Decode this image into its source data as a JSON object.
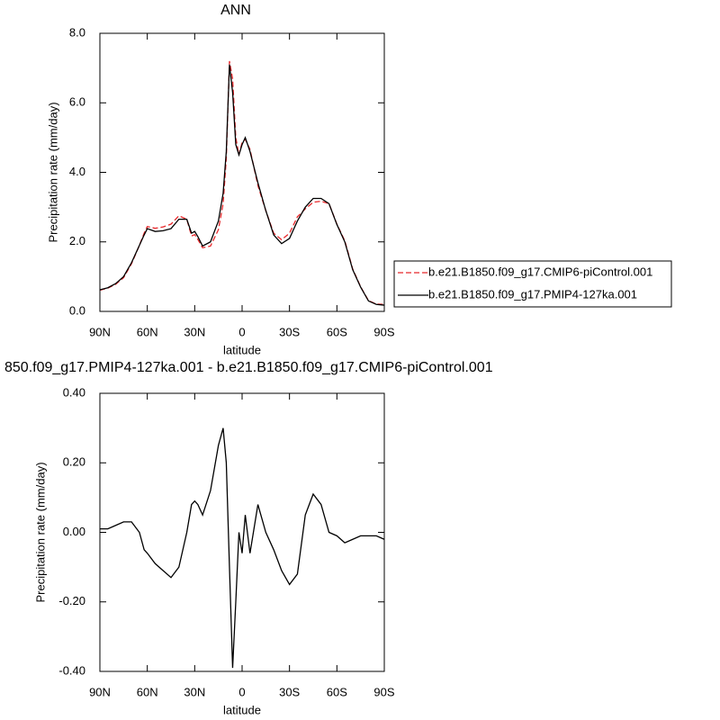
{
  "chart_data": [
    {
      "type": "line",
      "title": "ANN",
      "x_label": "latitude",
      "y_label": "Precipitation rate (mm/day)",
      "x": [
        90,
        85,
        80,
        75,
        70,
        65,
        62,
        60,
        55,
        50,
        45,
        40,
        35,
        32,
        30,
        28,
        25,
        20,
        15,
        12,
        10,
        8,
        6,
        4,
        2,
        0,
        -2,
        -5,
        -10,
        -15,
        -20,
        -25,
        -30,
        -35,
        -40,
        -45,
        -50,
        -55,
        -60,
        -65,
        -70,
        -75,
        -80,
        -85,
        -90
      ],
      "series": [
        {
          "name": "b.e21.B1850.f09_g17.CMIP6-piControl.001",
          "color": "#e8282b",
          "line_style": "dashed",
          "values": [
            0.61,
            0.67,
            0.78,
            0.97,
            1.37,
            1.9,
            2.25,
            2.44,
            2.39,
            2.43,
            2.51,
            2.75,
            2.65,
            2.17,
            2.21,
            2.07,
            1.83,
            1.88,
            2.35,
            3.1,
            4.4,
            7.2,
            6.69,
            5.0,
            4.5,
            4.86,
            4.95,
            4.66,
            3.62,
            2.9,
            2.25,
            2.06,
            2.25,
            2.72,
            2.95,
            3.14,
            3.17,
            3.1,
            2.51,
            2.03,
            1.22,
            0.71,
            0.31,
            0.21,
            0.2
          ]
        },
        {
          "name": "b.e21.B1850.f09_g17.PMIP4-127ka.001",
          "color": "#000000",
          "line_style": "solid",
          "values": [
            0.62,
            0.68,
            0.8,
            1.0,
            1.4,
            1.9,
            2.2,
            2.38,
            2.3,
            2.32,
            2.38,
            2.65,
            2.65,
            2.25,
            2.3,
            2.15,
            1.88,
            2.0,
            2.6,
            3.4,
            4.6,
            7.1,
            6.3,
            4.8,
            4.5,
            4.8,
            5.0,
            4.6,
            3.7,
            2.9,
            2.2,
            1.95,
            2.1,
            2.6,
            3.0,
            3.25,
            3.25,
            3.1,
            2.5,
            2.0,
            1.2,
            0.7,
            0.3,
            0.2,
            0.18
          ]
        }
      ],
      "xlim": [
        90,
        -90
      ],
      "xticks": [
        {
          "value": 90,
          "label": "90N"
        },
        {
          "value": 60,
          "label": "60N"
        },
        {
          "value": 30,
          "label": "30N"
        },
        0,
        {
          "value": -30,
          "label": "30S"
        },
        {
          "value": -60,
          "label": "60S"
        },
        {
          "value": -90,
          "label": "90S"
        }
      ],
      "ylim": [
        0,
        8
      ],
      "yticks": [
        {
          "value": 0,
          "label": "0.0"
        },
        {
          "value": 2,
          "label": "2.0"
        },
        {
          "value": 4,
          "label": "4.0"
        },
        {
          "value": 6,
          "label": "6.0"
        },
        {
          "value": 8,
          "label": "8.0"
        }
      ]
    },
    {
      "type": "line",
      "title": "850.f09_g17.PMIP4-127ka.001 - b.e21.B1850.f09_g17.CMIP6-piControl.001",
      "x_label": "latitude",
      "y_label": "Precipitation rate (mm/day)",
      "x": [
        90,
        85,
        80,
        75,
        70,
        65,
        62,
        60,
        55,
        50,
        45,
        40,
        35,
        32,
        30,
        28,
        25,
        20,
        15,
        12,
        10,
        8,
        6,
        4,
        2,
        0,
        -2,
        -5,
        -10,
        -15,
        -20,
        -25,
        -30,
        -35,
        -40,
        -45,
        -50,
        -55,
        -60,
        -65,
        -70,
        -75,
        -80,
        -85,
        -90
      ],
      "series": [
        {
          "color": "#000000",
          "line_style": "solid",
          "values": [
            0.01,
            0.01,
            0.02,
            0.03,
            0.03,
            0.0,
            -0.05,
            -0.06,
            -0.09,
            -0.11,
            -0.13,
            -0.1,
            0.0,
            0.08,
            0.09,
            0.08,
            0.05,
            0.12,
            0.25,
            0.3,
            0.2,
            -0.1,
            -0.39,
            -0.2,
            0.0,
            -0.06,
            0.05,
            -0.06,
            0.08,
            0.0,
            -0.05,
            -0.11,
            -0.15,
            -0.12,
            0.05,
            0.11,
            0.08,
            0.0,
            -0.01,
            -0.03,
            -0.02,
            -0.01,
            -0.01,
            -0.01,
            -0.02
          ]
        }
      ],
      "xlim": [
        90,
        -90
      ],
      "xticks": [
        {
          "value": 90,
          "label": "90N"
        },
        {
          "value": 60,
          "label": "60N"
        },
        {
          "value": 30,
          "label": "30N"
        },
        0,
        {
          "value": -30,
          "label": "30S"
        },
        {
          "value": -60,
          "label": "60S"
        },
        {
          "value": -90,
          "label": "90S"
        }
      ],
      "ylim": [
        -0.4,
        0.4
      ],
      "yticks": [
        {
          "value": -0.4,
          "label": "-0.40"
        },
        {
          "value": -0.2,
          "label": "-0.20"
        },
        {
          "value": 0,
          "label": "0.00"
        },
        {
          "value": 0.2,
          "label": "0.20"
        },
        {
          "value": 0.4,
          "label": "0.40"
        }
      ]
    }
  ]
}
